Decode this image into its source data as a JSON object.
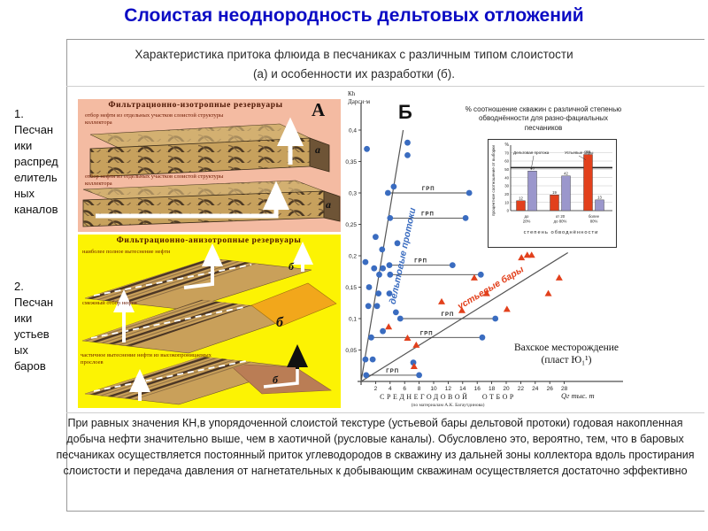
{
  "slide": {
    "title": "Слоистая неоднородность дельтовых отложений",
    "subtitle": "Характеристика притока флюида в песчаниках с различным типом  слоистости\n(а) и особенности их разработки (б).",
    "paragraph": "При равных значения КН,в упорядоченной слоистой текстуре (устьевой бары дельтовой  протоки) годовая накопленная добыча нефти значительно выше, чем в хаотичной (русловые каналы). Обусловлено это, вероятно, тем, что в баровых песчаниках осуществляется постоянный приток углеводородов в скважину из дальней зоны коллектора вдоль простирания слоистости и передача давления от нагнетательных к добывающим скважинам осуществляется достаточно эффективно"
  },
  "colors": {
    "title_blue": "#0b0bc4",
    "panel_a_bg": "#f4bba2",
    "panel_b_bg": "#fcf303",
    "delta_blue": "#3a6cc0",
    "bar_red": "#e2401c",
    "bar_purple": "#9b97cc"
  },
  "left_labels": {
    "item1": "1.\nПесчан\nики\nраспред\nелитель\nных\nканалов",
    "item2": "2.\nПесчан\nики\nустьев\nых\nбаров"
  },
  "panel_a": {
    "title": "Фильтрационно-изотропные резервуары",
    "corner_letter": "А",
    "caption_top": "отбор нефти из отдельных участков слоистой структуры коллектора",
    "caption_mid": "отбор нефти из отдельных участков слоистой структуры коллектора",
    "block_letter": "а"
  },
  "panel_b": {
    "title": "Фильтрационно-анизотропные резервуары",
    "caption_1": "наиболее полное вытеснение нефти",
    "caption_2": "смежный отбор нефти",
    "caption_3": "частичное вытеснение нефти из высокопроницаемых прослоев",
    "block_letter": "б"
  },
  "chart_data": [
    {
      "type": "scatter",
      "corner_letter": "Б",
      "ylabel_lines": [
        "Кh",
        "Дарси·м"
      ],
      "xlabel": "СРЕДНЕГОДОВОЙ ОТБОР",
      "xlabel_note": "(по материалам А.К. Багаутдинова)",
      "x_unit": "Qг тыс. т",
      "x_ticks": [
        2,
        4,
        6,
        8,
        10,
        12,
        14,
        16,
        18,
        20,
        22,
        24,
        26,
        28
      ],
      "y_ticks": [
        0.05,
        0.1,
        0.15,
        0.2,
        0.25,
        0.3,
        0.35,
        0.4
      ],
      "xlim": [
        0,
        29
      ],
      "ylim": [
        0,
        0.44
      ],
      "grid": false,
      "annotation_lines": [
        "Вахское месторождение",
        "(пласт Ю₁¹)"
      ],
      "frac_label": "ГРП",
      "frac_lines": [
        {
          "y": 0.3,
          "x1": 3.7,
          "x2": 14.9,
          "label": "ГРП"
        },
        {
          "y": 0.26,
          "x1": 4.0,
          "x2": 14.4,
          "label": "ГРП"
        },
        {
          "y": 0.185,
          "x1": 3.9,
          "x2": 12.6,
          "label": "ГРП"
        },
        {
          "y": 0.17,
          "x1": 4.0,
          "x2": 16.5,
          "label": ""
        },
        {
          "y": 0.1,
          "x1": 5.4,
          "x2": 18.5,
          "label": "ГРП"
        },
        {
          "y": 0.07,
          "x1": 1.4,
          "x2": 16.7,
          "label": "ГРП"
        },
        {
          "y": 0.01,
          "x1": 0.7,
          "x2": 8.0,
          "label": "ГРП"
        }
      ],
      "series": [
        {
          "name": "дельтовые протоки",
          "marker": "circle",
          "color": "#3a6cc0",
          "trend_from": [
            0,
            0
          ],
          "trend_to": [
            5.8,
            0.4
          ],
          "points": [
            [
              0.8,
              0.37
            ],
            [
              6.4,
              0.38
            ],
            [
              6.4,
              0.36
            ],
            [
              4.5,
              0.31
            ],
            [
              3.7,
              0.3
            ],
            [
              14.9,
              0.3
            ],
            [
              4.0,
              0.26
            ],
            [
              14.4,
              0.26
            ],
            [
              2.0,
              0.23
            ],
            [
              5.0,
              0.22
            ],
            [
              2.9,
              0.21
            ],
            [
              0.6,
              0.19
            ],
            [
              1.8,
              0.18
            ],
            [
              3.0,
              0.18
            ],
            [
              3.9,
              0.185
            ],
            [
              12.6,
              0.185
            ],
            [
              2.5,
              0.17
            ],
            [
              4.0,
              0.17
            ],
            [
              16.5,
              0.17
            ],
            [
              1.1,
              0.15
            ],
            [
              2.4,
              0.14
            ],
            [
              3.9,
              0.14
            ],
            [
              1.0,
              0.12
            ],
            [
              2.2,
              0.12
            ],
            [
              4.8,
              0.11
            ],
            [
              5.4,
              0.1
            ],
            [
              18.5,
              0.1
            ],
            [
              3.0,
              0.08
            ],
            [
              1.4,
              0.07
            ],
            [
              16.7,
              0.07
            ],
            [
              0.6,
              0.035
            ],
            [
              1.6,
              0.035
            ],
            [
              7.2,
              0.03
            ],
            [
              0.7,
              0.01
            ],
            [
              8.0,
              0.01
            ]
          ]
        },
        {
          "name": "устьевые бары",
          "marker": "triangle",
          "color": "#e2401c",
          "trend_from": [
            0,
            0
          ],
          "trend_to": [
            28.5,
            0.205
          ],
          "points": [
            [
              22.1,
              0.197
            ],
            [
              22.9,
              0.201
            ],
            [
              23.5,
              0.201
            ],
            [
              15.6,
              0.165
            ],
            [
              27.3,
              0.165
            ],
            [
              17.3,
              0.14
            ],
            [
              25.8,
              0.14
            ],
            [
              11.1,
              0.127
            ],
            [
              20.1,
              0.115
            ],
            [
              13.9,
              0.113
            ],
            [
              3.8,
              0.087
            ],
            [
              6.4,
              0.069
            ],
            [
              7.6,
              0.058
            ],
            [
              7.3,
              0.024
            ]
          ]
        }
      ]
    },
    {
      "type": "bar",
      "title": "% соотношение скважин с различной степенью обводнённости для разно-фациальных песчаников",
      "ylabel": "процентное соотношение от выборки",
      "xlabel": "степень обводнённости",
      "unit": "%",
      "y_ticks": [
        0,
        10,
        20,
        30,
        40,
        50,
        60,
        70
      ],
      "ylim": [
        0,
        75
      ],
      "ref_line": 52,
      "categories": [
        "до 20%",
        "от 20 до 80%",
        "более 80%"
      ],
      "categories_lines": [
        [
          "до",
          "20%"
        ],
        [
          "от 20",
          "до 80%"
        ],
        [
          "более",
          "80%"
        ]
      ],
      "series": [
        {
          "name": "Устьевые бары",
          "color": "#e2401c",
          "values": [
            12,
            19,
            68
          ]
        },
        {
          "name": "Дельтовая протока",
          "color": "#9b97cc",
          "values": [
            48,
            42,
            13
          ]
        }
      ],
      "legend": {
        "left": "Дельтовая протока",
        "right": "Устьевые бары"
      }
    }
  ]
}
